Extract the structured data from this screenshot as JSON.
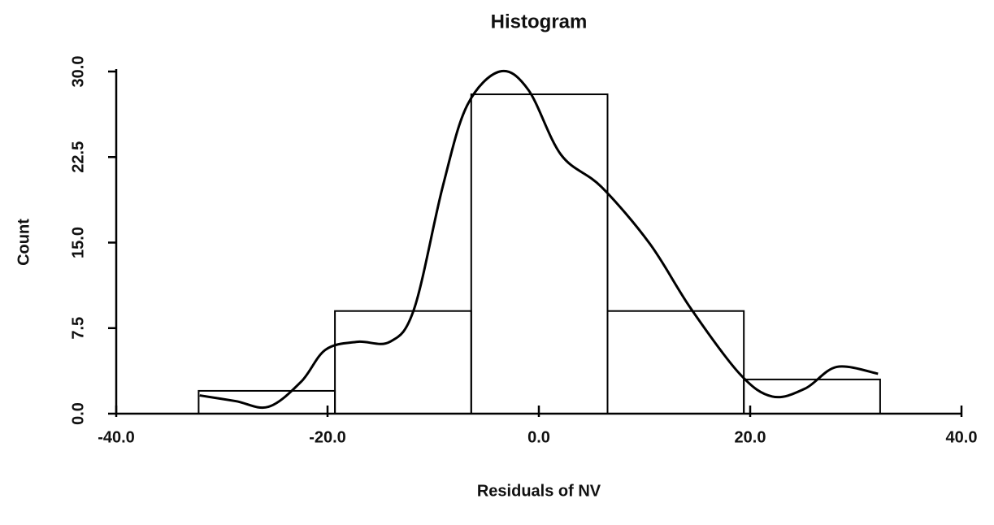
{
  "chart_data": {
    "type": "histogram",
    "title": "Histogram",
    "xlabel": "Residuals of NV",
    "ylabel": "Count",
    "bins": [
      -32.2,
      -19.3,
      -6.4,
      6.5,
      19.4,
      32.3
    ],
    "values": [
      2,
      9,
      28,
      9,
      3
    ],
    "color": "#000000",
    "xlim": [
      -40,
      40
    ],
    "xticks": [
      {
        "value": -40,
        "label": "-40.0"
      },
      {
        "value": -20,
        "label": "-20.0"
      },
      {
        "value": 0,
        "label": "0.0"
      },
      {
        "value": 20,
        "label": "20.0"
      },
      {
        "value": 40,
        "label": "40.0"
      }
    ],
    "ylim": [
      0,
      30
    ],
    "yticks": [
      {
        "value": 0,
        "label": "0.0"
      },
      7.5,
      {
        "value": 15,
        "label": "15.0"
      },
      22.5,
      {
        "value": 30,
        "label": "30.0"
      }
    ],
    "curve": {
      "x": [
        -32.1,
        -28.7,
        -25.6,
        -22.5,
        -20.2,
        -17.2,
        -14.1,
        -11.8,
        -9.1,
        -6.8,
        -3.7,
        -1.0,
        2.1,
        5.9,
        10.5,
        14.4,
        19.0,
        22.1,
        25.2,
        28.2,
        32.1
      ],
      "y": [
        1.6,
        1.1,
        0.6,
        2.8,
        5.6,
        6.3,
        6.3,
        9.2,
        19.9,
        27.0,
        30.0,
        28.4,
        22.7,
        19.9,
        14.9,
        9.2,
        3.5,
        1.5,
        2.2,
        4.1,
        3.5
      ]
    }
  }
}
